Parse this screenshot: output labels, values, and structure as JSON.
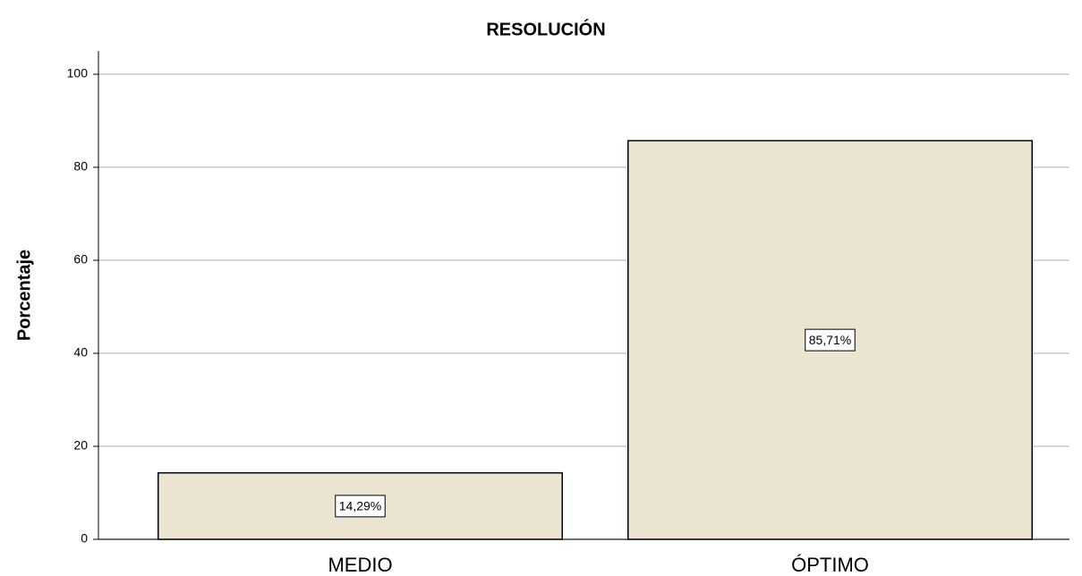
{
  "chart_data": {
    "type": "bar",
    "title": "RESOLUCIÓN",
    "y_label": "Porcentaje",
    "categories": [
      "MEDIO",
      "ÓPTIMO"
    ],
    "values": [
      14.29,
      85.71
    ],
    "value_labels": [
      "14,29%",
      "85,71%"
    ],
    "color": "#ebe4d0",
    "ylim": [
      0,
      105
    ],
    "yticks": [
      0,
      20,
      40,
      60,
      80,
      100
    ],
    "grid": true
  }
}
